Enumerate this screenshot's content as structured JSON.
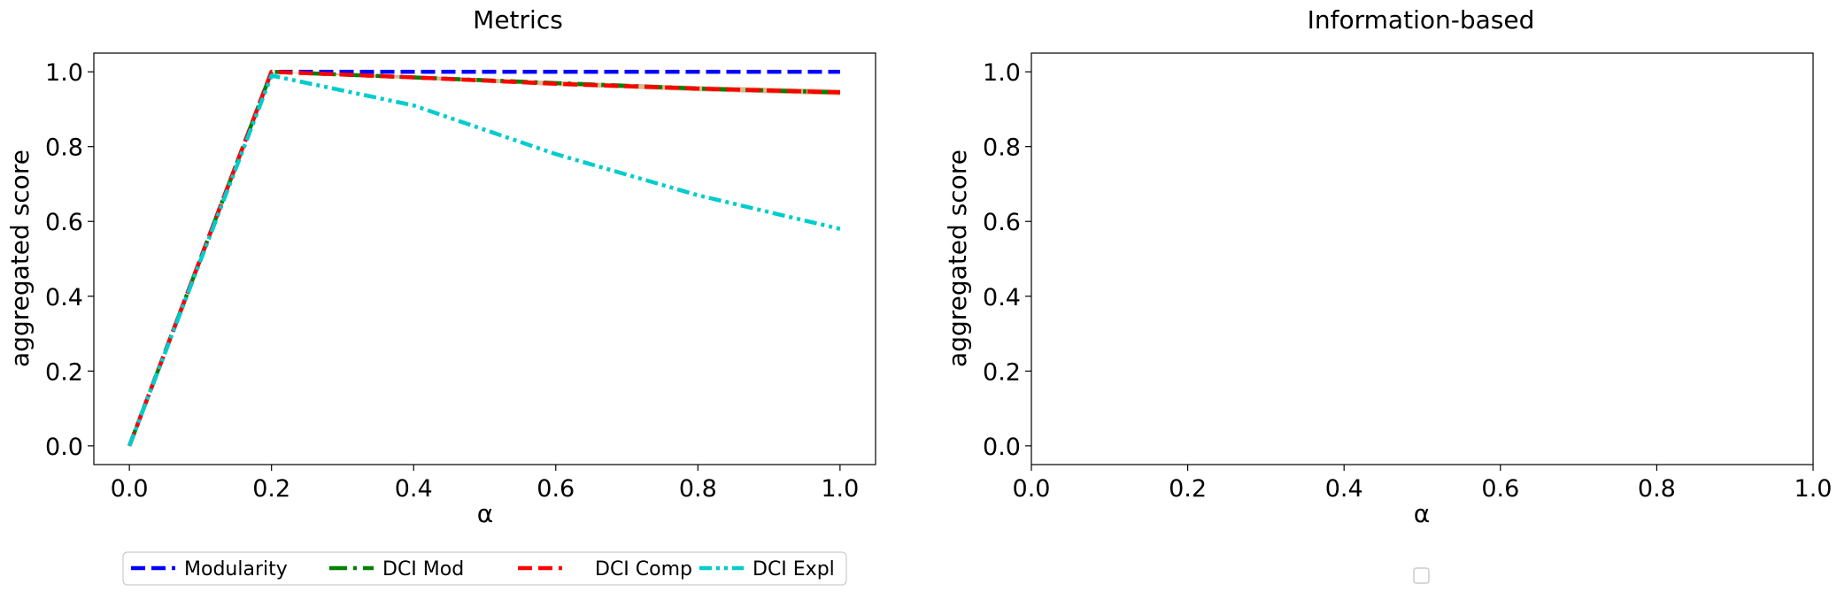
{
  "chart_data": [
    {
      "type": "line",
      "title": "Metrics",
      "xlabel": "α",
      "ylabel": "aggregated score",
      "x": [
        0.0,
        0.2,
        0.4,
        0.6,
        0.8,
        1.0
      ],
      "xlim": [
        -0.05,
        1.05
      ],
      "ylim": [
        -0.05,
        1.05
      ],
      "xticks": [
        "0.0",
        "0.2",
        "0.4",
        "0.6",
        "0.8",
        "1.0"
      ],
      "yticks": [
        "0.0",
        "0.2",
        "0.4",
        "0.6",
        "0.8",
        "1.0"
      ],
      "legend_position": "bottom-center, below plot",
      "series": [
        {
          "name": "Modularity",
          "values": [
            0.0,
            1.0,
            1.0,
            1.0,
            1.0,
            1.0
          ],
          "color": "#0000ff",
          "style": "dashed"
        },
        {
          "name": "DCI Mod",
          "values": [
            0.0,
            1.0,
            0.985,
            0.97,
            0.955,
            0.945
          ],
          "color": "#008000",
          "style": "dashdot"
        },
        {
          "name": "DCI Comp",
          "values": [
            0.0,
            1.0,
            0.985,
            0.968,
            0.955,
            0.945
          ],
          "color": "#ff0000",
          "style": "dashed"
        },
        {
          "name": "DCI Expl",
          "values": [
            0.0,
            0.99,
            0.91,
            0.78,
            0.67,
            0.58
          ],
          "color": "#00cccc",
          "style": "dashdotdot"
        }
      ],
      "band": {
        "values_low": [
          0.0,
          1.0,
          0.98,
          0.962,
          0.948,
          0.937
        ],
        "values_high": [
          0.0,
          1.0,
          0.99,
          0.975,
          0.962,
          0.953
        ],
        "color": "#d2a679"
      }
    },
    {
      "type": "line",
      "title": "Information-based",
      "xlabel": "α",
      "ylabel": "aggregated score",
      "xlim": [
        0.0,
        1.0
      ],
      "ylim": [
        -0.05,
        1.05
      ],
      "xticks": [
        "0.0",
        "0.2",
        "0.4",
        "0.6",
        "0.8",
        "1.0"
      ],
      "yticks": [
        "0.0",
        "0.2",
        "0.4",
        "0.6",
        "0.8",
        "1.0"
      ],
      "series": []
    }
  ]
}
